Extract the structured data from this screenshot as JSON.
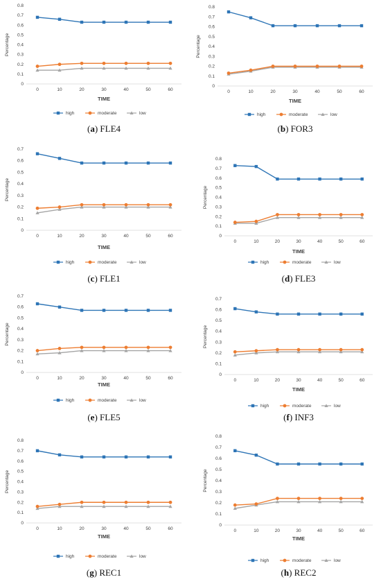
{
  "chart_data": [
    {
      "type": "line",
      "panel": "a",
      "name": "FLE4",
      "xlabel": "TIME",
      "ylabel": "Percentage",
      "x": [
        0,
        10,
        20,
        30,
        40,
        50,
        60
      ],
      "ylim": [
        0,
        0.8
      ],
      "yticks": [
        "0",
        "0.1",
        "0.2",
        "0.3",
        "0.4",
        "0.5",
        "0.6",
        "0.7",
        "0.8"
      ],
      "series": [
        {
          "name": "high",
          "color": "#2e75b6",
          "marker": "square",
          "values": [
            0.68,
            0.66,
            0.63,
            0.63,
            0.63,
            0.63,
            0.63
          ]
        },
        {
          "name": "moderate",
          "color": "#ed7d31",
          "marker": "circle",
          "values": [
            0.18,
            0.2,
            0.21,
            0.21,
            0.21,
            0.21,
            0.21
          ]
        },
        {
          "name": "low",
          "color": "#a5a5a5",
          "marker": "triangle",
          "values": [
            0.14,
            0.14,
            0.16,
            0.16,
            0.16,
            0.16,
            0.16
          ]
        }
      ]
    },
    {
      "type": "line",
      "panel": "b",
      "name": "FOR3",
      "xlabel": "TIME",
      "ylabel": "Percentage",
      "x": [
        0,
        10,
        20,
        30,
        40,
        50,
        60
      ],
      "ylim": [
        0,
        0.8
      ],
      "yticks": [
        "0",
        "0.1",
        "0.2",
        "0.3",
        "0.4",
        "0.5",
        "0.6",
        "0.7",
        "0.8"
      ],
      "series": [
        {
          "name": "high",
          "color": "#2e75b6",
          "marker": "square",
          "values": [
            0.75,
            0.69,
            0.61,
            0.61,
            0.61,
            0.61,
            0.61
          ]
        },
        {
          "name": "moderate",
          "color": "#ed7d31",
          "marker": "circle",
          "values": [
            0.13,
            0.16,
            0.2,
            0.2,
            0.2,
            0.2,
            0.2
          ]
        },
        {
          "name": "low",
          "color": "#a5a5a5",
          "marker": "triangle",
          "values": [
            0.12,
            0.15,
            0.19,
            0.19,
            0.19,
            0.19,
            0.19
          ]
        }
      ]
    },
    {
      "type": "line",
      "panel": "c",
      "name": "FLE1",
      "xlabel": "TIME",
      "ylabel": "Percentage",
      "x": [
        0,
        10,
        20,
        30,
        40,
        50,
        60
      ],
      "ylim": [
        0,
        0.7
      ],
      "yticks": [
        "0",
        "0.1",
        "0.2",
        "0.3",
        "0.4",
        "0.5",
        "0.6",
        "0.7"
      ],
      "series": [
        {
          "name": "high",
          "color": "#2e75b6",
          "marker": "square",
          "values": [
            0.66,
            0.62,
            0.58,
            0.58,
            0.58,
            0.58,
            0.58
          ]
        },
        {
          "name": "moderate",
          "color": "#ed7d31",
          "marker": "circle",
          "values": [
            0.19,
            0.2,
            0.22,
            0.22,
            0.22,
            0.22,
            0.22
          ]
        },
        {
          "name": "low",
          "color": "#a5a5a5",
          "marker": "triangle",
          "values": [
            0.15,
            0.18,
            0.2,
            0.2,
            0.2,
            0.2,
            0.2
          ]
        }
      ]
    },
    {
      "type": "line",
      "panel": "d",
      "name": "FLE3",
      "xlabel": "TIME",
      "ylabel": "Percentage",
      "x": [
        0,
        10,
        20,
        30,
        40,
        50,
        60
      ],
      "ylim": [
        0,
        0.8
      ],
      "yticks": [
        "0",
        "0.1",
        "0.2",
        "0.3",
        "0.4",
        "0.5",
        "0.6",
        "0.7",
        "0.8"
      ],
      "series": [
        {
          "name": "high",
          "color": "#2e75b6",
          "marker": "square",
          "values": [
            0.73,
            0.72,
            0.59,
            0.59,
            0.59,
            0.59,
            0.59
          ]
        },
        {
          "name": "moderate",
          "color": "#ed7d31",
          "marker": "circle",
          "values": [
            0.14,
            0.15,
            0.22,
            0.22,
            0.22,
            0.22,
            0.22
          ]
        },
        {
          "name": "low",
          "color": "#a5a5a5",
          "marker": "triangle",
          "values": [
            0.13,
            0.13,
            0.19,
            0.19,
            0.19,
            0.19,
            0.19
          ]
        }
      ]
    },
    {
      "type": "line",
      "panel": "e",
      "name": "FLE5",
      "xlabel": "TIME",
      "ylabel": "Percentage",
      "x": [
        0,
        10,
        20,
        30,
        40,
        50,
        60
      ],
      "ylim": [
        0,
        0.7
      ],
      "yticks": [
        "0",
        "0.1",
        "0.2",
        "0.3",
        "0.4",
        "0.5",
        "0.6",
        "0.7"
      ],
      "series": [
        {
          "name": "high",
          "color": "#2e75b6",
          "marker": "square",
          "values": [
            0.63,
            0.6,
            0.57,
            0.57,
            0.57,
            0.57,
            0.57
          ]
        },
        {
          "name": "moderate",
          "color": "#ed7d31",
          "marker": "circle",
          "values": [
            0.2,
            0.22,
            0.23,
            0.23,
            0.23,
            0.23,
            0.23
          ]
        },
        {
          "name": "low",
          "color": "#a5a5a5",
          "marker": "triangle",
          "values": [
            0.17,
            0.18,
            0.2,
            0.2,
            0.2,
            0.2,
            0.2
          ]
        }
      ]
    },
    {
      "type": "line",
      "panel": "f",
      "name": "INF3",
      "xlabel": "TIME",
      "ylabel": "Percentage",
      "x": [
        0,
        10,
        20,
        30,
        40,
        50,
        60
      ],
      "ylim": [
        0,
        0.7
      ],
      "yticks": [
        "0",
        "0.1",
        "0.2",
        "0.3",
        "0.4",
        "0.5",
        "0.6",
        "0.7"
      ],
      "series": [
        {
          "name": "high",
          "color": "#2e75b6",
          "marker": "square",
          "values": [
            0.61,
            0.58,
            0.56,
            0.56,
            0.56,
            0.56,
            0.56
          ]
        },
        {
          "name": "moderate",
          "color": "#ed7d31",
          "marker": "circle",
          "values": [
            0.21,
            0.22,
            0.23,
            0.23,
            0.23,
            0.23,
            0.23
          ]
        },
        {
          "name": "low",
          "color": "#a5a5a5",
          "marker": "triangle",
          "values": [
            0.18,
            0.2,
            0.21,
            0.21,
            0.21,
            0.21,
            0.21
          ]
        }
      ]
    },
    {
      "type": "line",
      "panel": "g",
      "name": "REC1",
      "xlabel": "TIME",
      "ylabel": "Percentage",
      "x": [
        0,
        10,
        20,
        30,
        40,
        50,
        60
      ],
      "ylim": [
        0,
        0.8
      ],
      "yticks": [
        "0",
        "0.1",
        "0.2",
        "0.3",
        "0.4",
        "0.5",
        "0.6",
        "0.7",
        "0.8"
      ],
      "series": [
        {
          "name": "high",
          "color": "#2e75b6",
          "marker": "square",
          "values": [
            0.7,
            0.66,
            0.64,
            0.64,
            0.64,
            0.64,
            0.64
          ]
        },
        {
          "name": "moderate",
          "color": "#ed7d31",
          "marker": "circle",
          "values": [
            0.16,
            0.18,
            0.2,
            0.2,
            0.2,
            0.2,
            0.2
          ]
        },
        {
          "name": "low",
          "color": "#a5a5a5",
          "marker": "triangle",
          "values": [
            0.14,
            0.16,
            0.16,
            0.16,
            0.16,
            0.16,
            0.16
          ]
        }
      ]
    },
    {
      "type": "line",
      "panel": "h",
      "name": "REC2",
      "xlabel": "TIME",
      "ylabel": "Percentage",
      "x": [
        0,
        10,
        20,
        30,
        40,
        50,
        60
      ],
      "ylim": [
        0,
        0.8
      ],
      "yticks": [
        "0",
        "0.1",
        "0.2",
        "0.3",
        "0.4",
        "0.5",
        "0.6",
        "0.7",
        "0.8"
      ],
      "series": [
        {
          "name": "high",
          "color": "#2e75b6",
          "marker": "square",
          "values": [
            0.67,
            0.63,
            0.55,
            0.55,
            0.55,
            0.55,
            0.55
          ]
        },
        {
          "name": "moderate",
          "color": "#ed7d31",
          "marker": "circle",
          "values": [
            0.18,
            0.19,
            0.24,
            0.24,
            0.24,
            0.24,
            0.24
          ]
        },
        {
          "name": "low",
          "color": "#a5a5a5",
          "marker": "triangle",
          "values": [
            0.15,
            0.18,
            0.21,
            0.21,
            0.21,
            0.21,
            0.21
          ]
        }
      ]
    }
  ]
}
